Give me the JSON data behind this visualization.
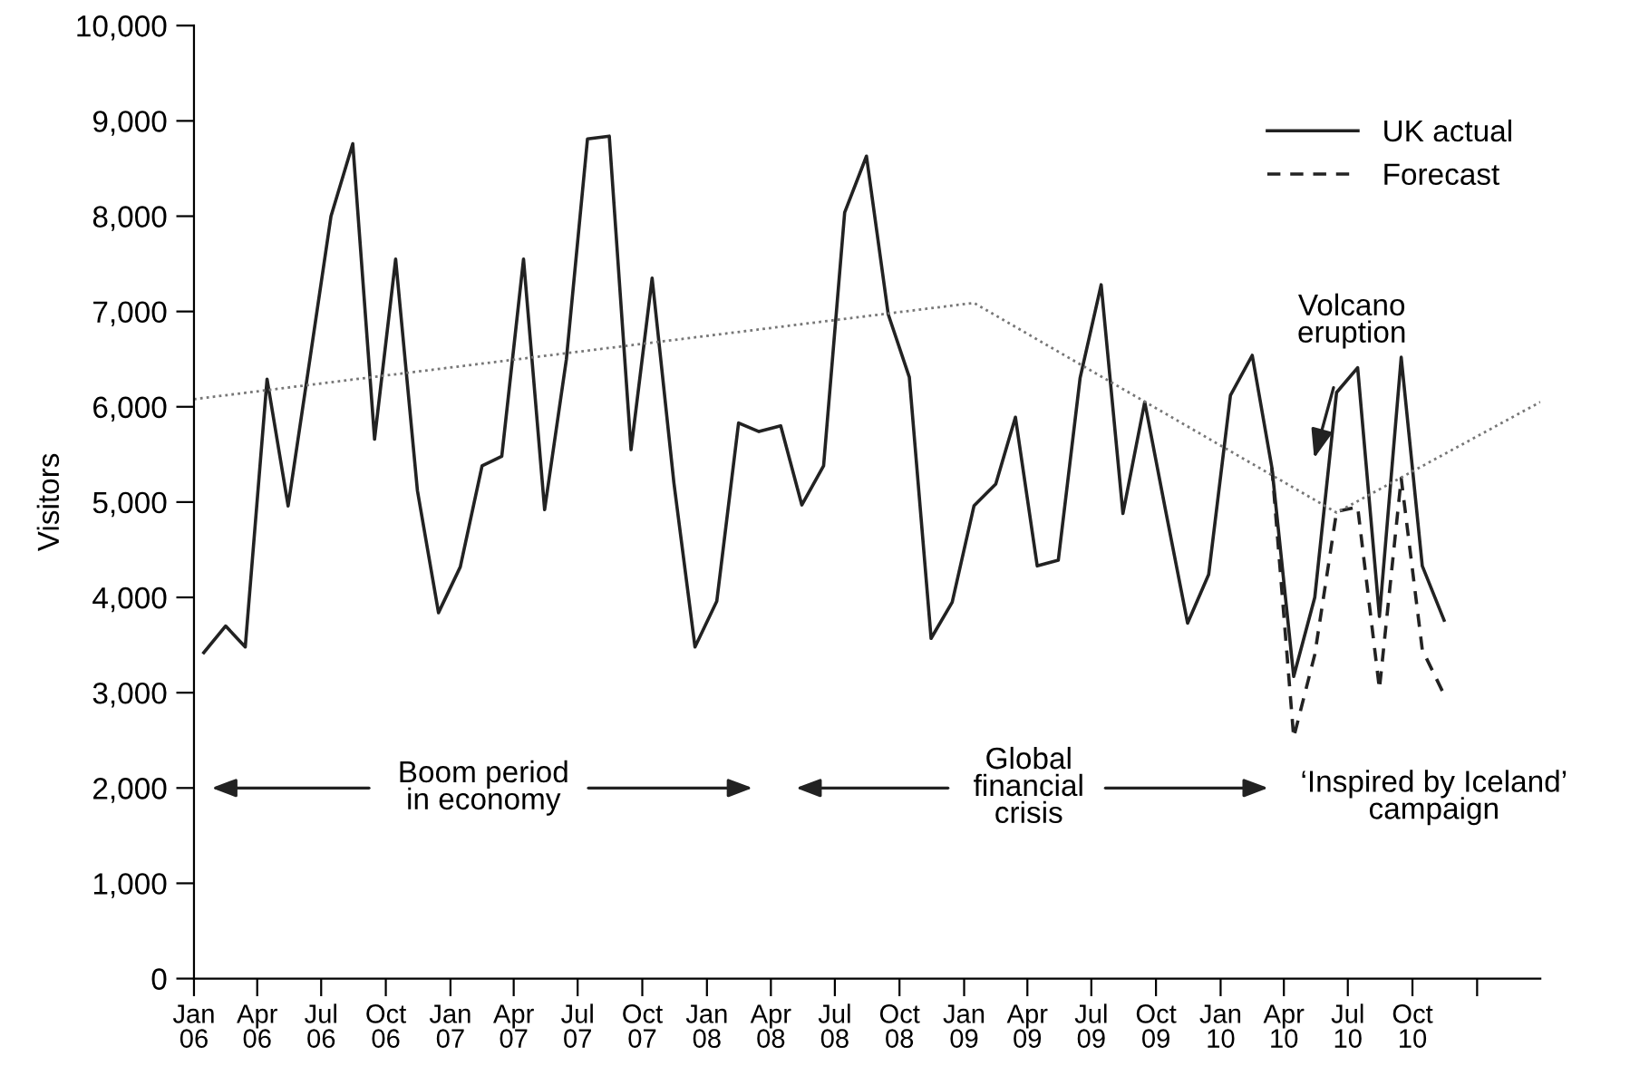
{
  "chart_data": {
    "type": "line",
    "ylabel": "Visitors",
    "xlim": [
      "2006-01-01",
      "2011-04-01"
    ],
    "ylim": [
      0,
      10000
    ],
    "xticks": [
      {
        "value": "2006-01-01",
        "label": "Jan\n06"
      },
      {
        "value": "2006-04-01",
        "label": "Apr\n06"
      },
      {
        "value": "2006-07-01",
        "label": "Jul\n06"
      },
      {
        "value": "2006-10-01",
        "label": "Oct\n06"
      },
      {
        "value": "2007-01-01",
        "label": "Jan\n07"
      },
      {
        "value": "2007-04-01",
        "label": "Apr\n07"
      },
      {
        "value": "2007-07-01",
        "label": "Jul\n07"
      },
      {
        "value": "2007-10-01",
        "label": "Oct\n07"
      },
      {
        "value": "2008-01-01",
        "label": "Jan\n08"
      },
      {
        "value": "2008-04-01",
        "label": "Apr\n08"
      },
      {
        "value": "2008-07-01",
        "label": "Jul\n08"
      },
      {
        "value": "2008-10-01",
        "label": "Oct\n08"
      },
      {
        "value": "2009-01-01",
        "label": "Jan\n09"
      },
      {
        "value": "2009-04-01",
        "label": "Apr\n09"
      },
      {
        "value": "2009-07-01",
        "label": "Jul\n09"
      },
      {
        "value": "2009-10-01",
        "label": "Oct\n09"
      },
      {
        "value": "2010-01-01",
        "label": "Jan\n10"
      },
      {
        "value": "2010-04-01",
        "label": "Apr\n10"
      },
      {
        "value": "2010-07-01",
        "label": "Jul\n10"
      },
      {
        "value": "2010-10-01",
        "label": "Oct\n10"
      },
      {
        "value": "2011-01-01",
        "label": null
      }
    ],
    "yticks": [
      0,
      {
        "value": 1000,
        "label": "1,000"
      },
      {
        "value": 2000,
        "label": "2,000"
      },
      {
        "value": 3000,
        "label": "3,000"
      },
      {
        "value": 4000,
        "label": "4,000"
      },
      {
        "value": 5000,
        "label": "5,000"
      },
      {
        "value": 6000,
        "label": "6,000"
      },
      {
        "value": 7000,
        "label": "7,000"
      },
      {
        "value": 8000,
        "label": "8,000"
      },
      {
        "value": 9000,
        "label": "9,000"
      },
      {
        "value": 10000,
        "label": "10,000"
      }
    ],
    "grid": false,
    "legend": "top right",
    "marker": "none",
    "series": [
      {
        "name": "UK actual",
        "color": "#222222",
        "line_style": "solid",
        "x": [
          "2006-01-15",
          "2006-02-15",
          "2006-03-15",
          "2006-04-15",
          "2006-05-15",
          "2006-06-15",
          "2006-07-15",
          "2006-08-15",
          "2006-09-15",
          "2006-10-15",
          "2006-11-15",
          "2006-12-15",
          "2007-01-15",
          "2007-02-15",
          "2007-03-15",
          "2007-04-15",
          "2007-05-15",
          "2007-06-15",
          "2007-07-15",
          "2007-08-15",
          "2007-09-15",
          "2007-10-15",
          "2007-11-15",
          "2007-12-15",
          "2008-01-15",
          "2008-02-15",
          "2008-03-15",
          "2008-04-15",
          "2008-05-15",
          "2008-06-15",
          "2008-07-15",
          "2008-08-15",
          "2008-09-15",
          "2008-10-15",
          "2008-11-15",
          "2008-12-15",
          "2009-01-15",
          "2009-02-15",
          "2009-03-15",
          "2009-04-15",
          "2009-05-15",
          "2009-06-15",
          "2009-07-15",
          "2009-08-15",
          "2009-09-15",
          "2009-10-15",
          "2009-11-15",
          "2009-12-15",
          "2010-01-15",
          "2010-02-15",
          "2010-03-15",
          "2010-04-15",
          "2010-05-15",
          "2010-06-15",
          "2010-07-15",
          "2010-08-15",
          "2010-09-15",
          "2010-10-15",
          "2010-11-15"
        ],
        "values": [
          3420,
          3700,
          3480,
          6290,
          4960,
          6500,
          8000,
          8760,
          5660,
          7550,
          5120,
          3840,
          4320,
          5380,
          5480,
          7550,
          4920,
          6500,
          8810,
          8840,
          5550,
          7350,
          5200,
          3480,
          3960,
          5830,
          5740,
          5800,
          4970,
          5380,
          8040,
          8630,
          6970,
          6310,
          3570,
          3950,
          4960,
          5190,
          5890,
          4330,
          4390,
          6300,
          7280,
          4880,
          6050,
          4900,
          3730,
          4240,
          6120,
          6540,
          5360,
          3170,
          4000,
          6150,
          6410,
          3800,
          6520,
          4330,
          3760
        ]
      },
      {
        "name": "Forecast",
        "color": "#222222",
        "line_style": "dashed",
        "x": [
          "2010-03-15",
          "2010-04-15",
          "2010-05-15",
          "2010-06-15",
          "2010-07-15",
          "2010-08-15",
          "2010-09-15",
          "2010-10-15",
          "2010-11-15"
        ],
        "values": [
          5360,
          2530,
          3400,
          4900,
          4950,
          3040,
          5250,
          3450,
          2980
        ]
      },
      {
        "color": "#777777",
        "line_style": "dotted",
        "x": [
          "2006-01-01",
          "2009-01-15",
          "2010-06-15",
          "2011-04-01"
        ],
        "values": [
          6080,
          7090,
          4890,
          6050
        ]
      }
    ],
    "annotations": [
      "Boom period\nin economy",
      "Global\nfinancial\ncrisis",
      "‘Inspired by Iceland’\ncampaign",
      "Volcano\neruption"
    ]
  }
}
